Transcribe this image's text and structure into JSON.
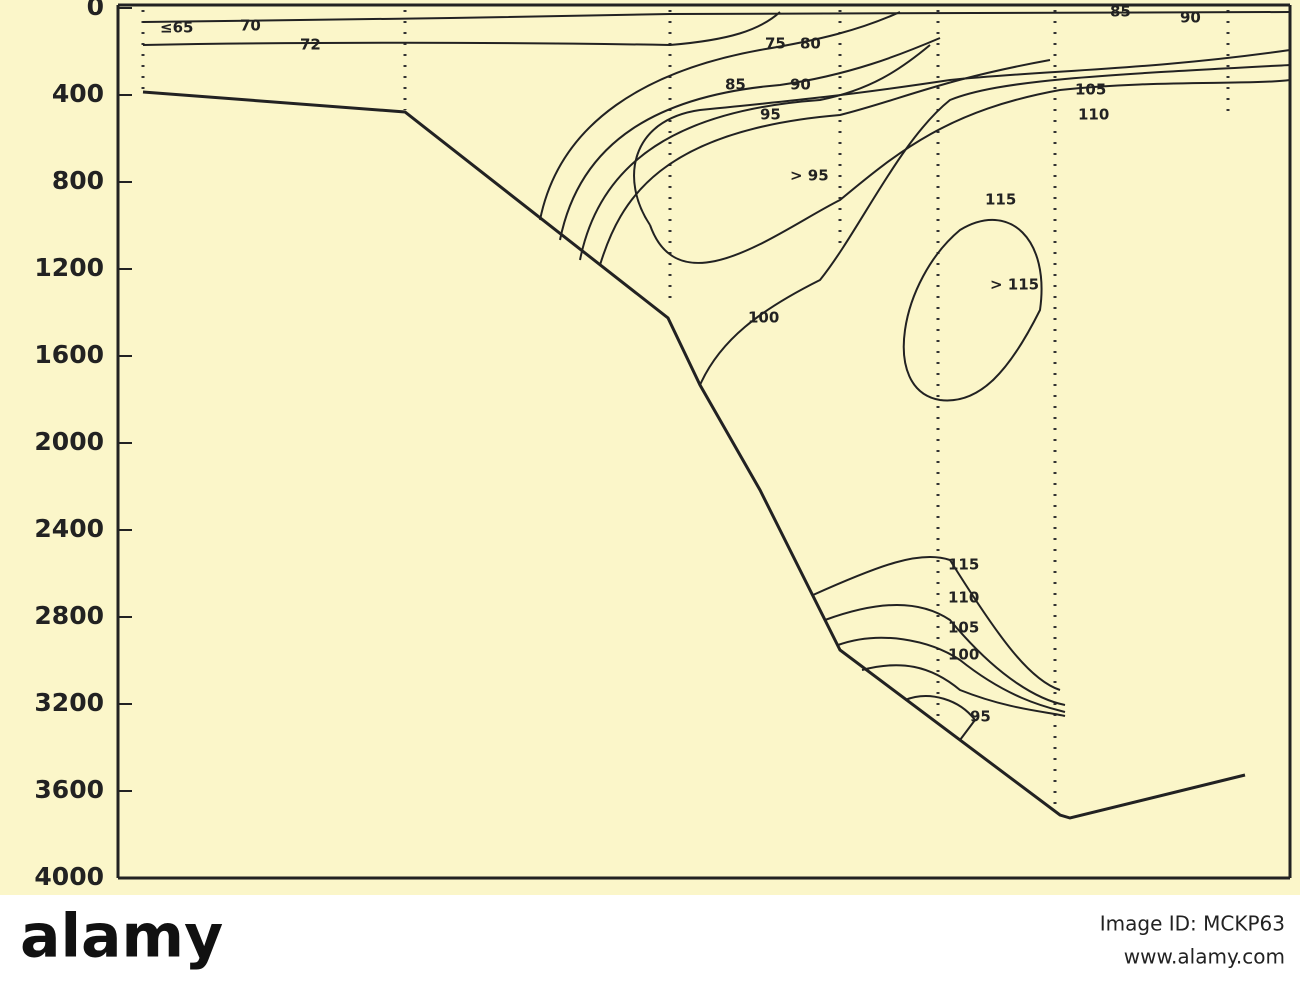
{
  "chart_data": {
    "type": "contour",
    "ylim": [
      0,
      4000
    ],
    "yticks": [
      0,
      400,
      800,
      1200,
      1600,
      2000,
      2400,
      2800,
      3200,
      3600,
      4000
    ],
    "annotations": [
      "≤65",
      "70",
      "72",
      "75",
      "80",
      "85",
      "90",
      "95",
      "> 95",
      "85",
      "90",
      "105",
      "110",
      "115",
      "> 115",
      "100",
      "115",
      "110",
      "105",
      "100",
      "95"
    ]
  },
  "footer": {
    "logo": "alamy",
    "image_id": "Image ID: MCKP63",
    "url": "www.alamy.com"
  }
}
